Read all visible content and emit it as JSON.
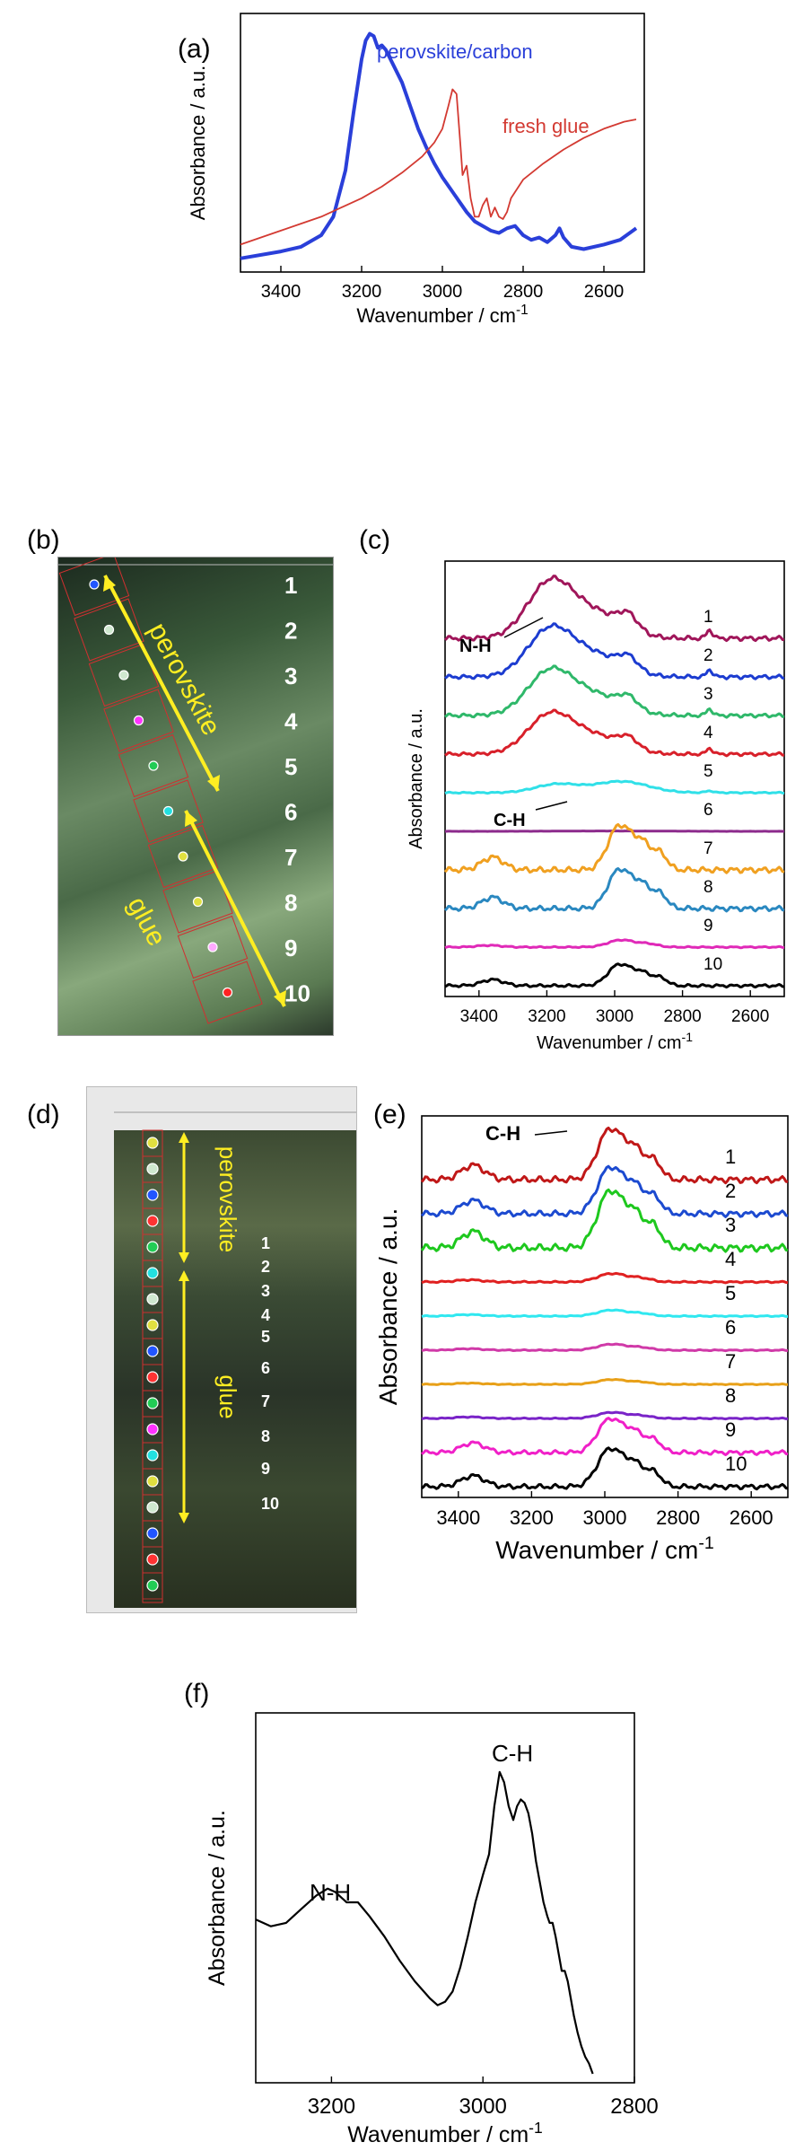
{
  "panels": {
    "a": {
      "letter": "(a)"
    },
    "b": {
      "letter": "(b)",
      "labels": {
        "perovskite": "perovskite",
        "glue": "glue"
      },
      "point_numbers": [
        "1",
        "2",
        "3",
        "4",
        "5",
        "6",
        "7",
        "8",
        "9",
        "10"
      ],
      "point_colors": [
        "#2255ff",
        "#cfe8cf",
        "#cfe8cf",
        "#ff33ff",
        "#22cc55",
        "#22e0e0",
        "#e0e040",
        "#e0e040",
        "#ffaaff",
        "#ff2222"
      ]
    },
    "c": {
      "letter": "(c)"
    },
    "d": {
      "letter": "(d)",
      "labels": {
        "perovskite": "perovskite",
        "glue": "glue"
      },
      "point_numbers": [
        "1",
        "2",
        "3",
        "4",
        "5",
        "6",
        "7",
        "8",
        "9",
        "10"
      ],
      "point_colors": [
        "#e0e040",
        "#cfe8cf",
        "#2255ff",
        "#ff3333",
        "#22cc55",
        "#22e0e0",
        "#cfe8cf",
        "#e0e040",
        "#2255ff",
        "#ff3333",
        "#22cc55",
        "#ff33ff",
        "#22e0e0",
        "#e0e040",
        "#cfe8cf",
        "#2255ff",
        "#ff3333",
        "#22cc55"
      ]
    },
    "e": {
      "letter": "(e)"
    },
    "f": {
      "letter": "(f)"
    }
  },
  "chart_data": [
    {
      "id": "a",
      "type": "line",
      "xlabel": "Wavenumber / cm",
      "xlabel_sup": "-1",
      "ylabel": "Absorbance / a.u.",
      "xlim": [
        3500,
        2500
      ],
      "ylim": [
        0,
        1
      ],
      "xticks": [
        3400,
        3200,
        3000,
        2800,
        2600
      ],
      "series": [
        {
          "name": "perovskite/carbon",
          "color": "#2a3fd9",
          "width": 4,
          "x": [
            3500,
            3400,
            3350,
            3300,
            3270,
            3240,
            3220,
            3200,
            3190,
            3180,
            3170,
            3160,
            3150,
            3140,
            3120,
            3100,
            3080,
            3060,
            3040,
            3020,
            3000,
            2980,
            2960,
            2940,
            2920,
            2900,
            2880,
            2860,
            2840,
            2820,
            2800,
            2780,
            2760,
            2740,
            2720,
            2710,
            2700,
            2680,
            2650,
            2600,
            2560,
            2520
          ],
          "y": [
            0.02,
            0.05,
            0.07,
            0.12,
            0.2,
            0.4,
            0.65,
            0.88,
            0.96,
            0.99,
            0.98,
            0.93,
            0.94,
            0.92,
            0.85,
            0.78,
            0.68,
            0.58,
            0.5,
            0.43,
            0.37,
            0.32,
            0.27,
            0.22,
            0.18,
            0.16,
            0.14,
            0.13,
            0.15,
            0.16,
            0.12,
            0.1,
            0.11,
            0.09,
            0.12,
            0.15,
            0.11,
            0.07,
            0.06,
            0.08,
            0.1,
            0.15
          ]
        },
        {
          "name": "fresh glue",
          "color": "#d33a32",
          "width": 1.8,
          "x": [
            3500,
            3450,
            3400,
            3350,
            3300,
            3250,
            3200,
            3150,
            3100,
            3050,
            3020,
            3000,
            2985,
            2975,
            2965,
            2955,
            2950,
            2945,
            2940,
            2935,
            2930,
            2920,
            2910,
            2900,
            2890,
            2880,
            2870,
            2860,
            2850,
            2840,
            2830,
            2800,
            2750,
            2700,
            2650,
            2600,
            2550,
            2520
          ],
          "y": [
            0.08,
            0.11,
            0.14,
            0.17,
            0.2,
            0.24,
            0.28,
            0.33,
            0.39,
            0.46,
            0.52,
            0.58,
            0.68,
            0.75,
            0.73,
            0.5,
            0.38,
            0.4,
            0.42,
            0.35,
            0.28,
            0.2,
            0.2,
            0.25,
            0.28,
            0.2,
            0.24,
            0.2,
            0.19,
            0.22,
            0.28,
            0.36,
            0.43,
            0.49,
            0.54,
            0.58,
            0.61,
            0.62
          ]
        }
      ]
    },
    {
      "id": "c",
      "type": "line",
      "xlabel": "Wavenumber / cm",
      "xlabel_sup": "-1",
      "ylabel": "Absorbance / a.u.",
      "xlim": [
        3500,
        2500
      ],
      "xticks": [
        3400,
        3200,
        3000,
        2800,
        2600
      ],
      "annotations": [
        "N-H",
        "C-H"
      ],
      "series": [
        {
          "name": "1",
          "color": "#a0165a",
          "offset": 9,
          "shape": "nh",
          "amp": 1.7
        },
        {
          "name": "2",
          "color": "#1c3cd0",
          "offset": 8,
          "shape": "nh",
          "amp": 1.45
        },
        {
          "name": "3",
          "color": "#2fb86a",
          "offset": 7,
          "shape": "nh",
          "amp": 1.35
        },
        {
          "name": "4",
          "color": "#d8202a",
          "offset": 6,
          "shape": "nh",
          "amp": 1.2
        },
        {
          "name": "5",
          "color": "#30e0e8",
          "offset": 5,
          "shape": "mix",
          "amp": 0.55
        },
        {
          "name": "6",
          "color": "#8c2a8c",
          "offset": 4,
          "shape": "flat",
          "amp": 0.1
        },
        {
          "name": "7",
          "color": "#f0a020",
          "offset": 3,
          "shape": "ch",
          "amp": 1.25
        },
        {
          "name": "8",
          "color": "#2a88c0",
          "offset": 2,
          "shape": "ch",
          "amp": 1.1
        },
        {
          "name": "9",
          "color": "#e02ab8",
          "offset": 1,
          "shape": "chsmall",
          "amp": 0.35
        },
        {
          "name": "10",
          "color": "#000000",
          "offset": 0,
          "shape": "ch",
          "amp": 0.6
        }
      ]
    },
    {
      "id": "e",
      "type": "line",
      "xlabel": "Wavenumber / cm",
      "xlabel_sup": "-1",
      "ylabel": "Absorbance / a.u.",
      "xlim": [
        3500,
        2500
      ],
      "xticks": [
        3400,
        3200,
        3000,
        2800,
        2600
      ],
      "annotations": [
        "C-H"
      ],
      "series": [
        {
          "name": "1",
          "color": "#c01818",
          "offset": 9,
          "shape": "ch",
          "amp": 1.2
        },
        {
          "name": "2",
          "color": "#1c4ad0",
          "offset": 8,
          "shape": "ch",
          "amp": 1.1
        },
        {
          "name": "3",
          "color": "#1ec81e",
          "offset": 7,
          "shape": "ch",
          "amp": 1.35
        },
        {
          "name": "4",
          "color": "#e02020",
          "offset": 6,
          "shape": "chsmall",
          "amp": 0.35
        },
        {
          "name": "5",
          "color": "#30e8f0",
          "offset": 5,
          "shape": "chsmall",
          "amp": 0.25
        },
        {
          "name": "6",
          "color": "#d03aa8",
          "offset": 4,
          "shape": "chsmall",
          "amp": 0.25
        },
        {
          "name": "7",
          "color": "#e8a018",
          "offset": 3,
          "shape": "chsmall",
          "amp": 0.2
        },
        {
          "name": "8",
          "color": "#7a24c8",
          "offset": 2,
          "shape": "chsmall",
          "amp": 0.25
        },
        {
          "name": "9",
          "color": "#f020c8",
          "offset": 1,
          "shape": "ch",
          "amp": 0.8
        },
        {
          "name": "10",
          "color": "#000000",
          "offset": 0,
          "shape": "ch",
          "amp": 0.9
        }
      ]
    },
    {
      "id": "f",
      "type": "line",
      "xlabel": "Wavenumber / cm",
      "xlabel_sup": "-1",
      "ylabel": "Absorbance  / a.u.",
      "xlim": [
        3300,
        2800
      ],
      "ylim": [
        0,
        1
      ],
      "xticks": [
        3200,
        3000,
        2800
      ],
      "annotations": [
        "N-H",
        "C-H"
      ],
      "series": [
        {
          "name": "",
          "color": "#000000",
          "width": 2.2,
          "x": [
            3300,
            3280,
            3260,
            3240,
            3220,
            3205,
            3195,
            3180,
            3165,
            3150,
            3130,
            3110,
            3090,
            3070,
            3060,
            3050,
            3040,
            3030,
            3020,
            3010,
            3000,
            2992,
            2985,
            2978,
            2972,
            2966,
            2960,
            2955,
            2950,
            2945,
            2940,
            2935,
            2930,
            2925,
            2920,
            2915,
            2912,
            2908,
            2904,
            2900,
            2896,
            2892,
            2888,
            2884,
            2880,
            2875,
            2870,
            2865,
            2860,
            2855
          ],
          "y": [
            0.45,
            0.43,
            0.44,
            0.48,
            0.52,
            0.54,
            0.53,
            0.5,
            0.5,
            0.46,
            0.4,
            0.33,
            0.27,
            0.22,
            0.2,
            0.21,
            0.24,
            0.31,
            0.4,
            0.5,
            0.58,
            0.64,
            0.78,
            0.88,
            0.85,
            0.78,
            0.74,
            0.78,
            0.8,
            0.79,
            0.76,
            0.7,
            0.62,
            0.56,
            0.5,
            0.46,
            0.44,
            0.44,
            0.4,
            0.35,
            0.3,
            0.3,
            0.27,
            0.22,
            0.17,
            0.12,
            0.08,
            0.05,
            0.03,
            0.0
          ]
        }
      ]
    }
  ]
}
